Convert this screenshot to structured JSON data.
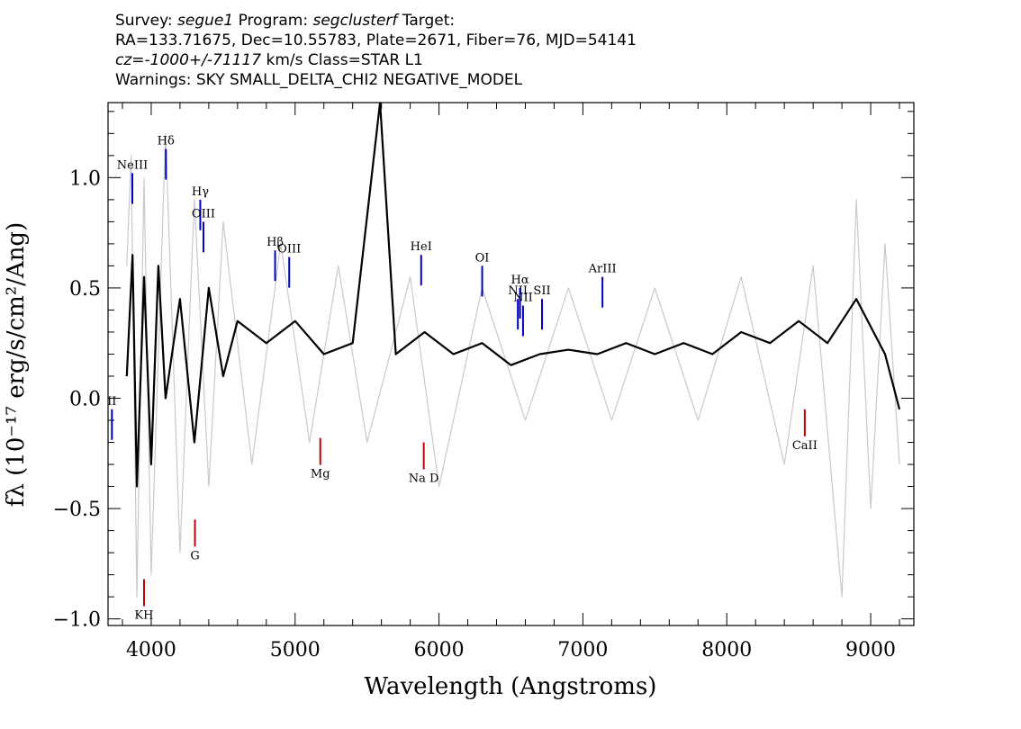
{
  "header": {
    "line1_survey_label": "Survey:",
    "survey": "segue1",
    "program_label": "Program:",
    "program": "segclusterf",
    "target_label": "Target:",
    "line2": "RA=133.71675, Dec=10.55783, Plate=2671, Fiber=76, MJD=54141",
    "cz_label": "cz=",
    "cz_value": "-1000+/-71117",
    "cz_unit_class": "km/s Class=STAR L1",
    "line4": "Warnings: SKY SMALL_DELTA_CHI2 NEGATIVE_MODEL"
  },
  "chart_data": {
    "type": "line",
    "xlabel": "Wavelength (Angstroms)",
    "ylabel": "fλ (10⁻¹⁷ erg/s/cm²/Ang)",
    "xlim": [
      3700,
      9300
    ],
    "ylim": [
      -1.03,
      1.34
    ],
    "x_ticks": [
      4000,
      5000,
      6000,
      7000,
      8000,
      9000
    ],
    "x_tick_labels": [
      "4000",
      "5000",
      "6000",
      "7000",
      "8000",
      "9000"
    ],
    "y_ticks": [
      -1.0,
      -0.5,
      0.0,
      0.5,
      1.0
    ],
    "y_tick_labels": [
      "−1.0",
      "−0.5",
      "0.0",
      "0.5",
      "1.0"
    ],
    "grid": false,
    "series": [
      {
        "color": "#c8c8c8",
        "x": [
          3830,
          3860,
          3900,
          3950,
          4000,
          4100,
          4200,
          4300,
          4400,
          4500,
          4700,
          4900,
          5100,
          5300,
          5500,
          5800,
          6000,
          6300,
          6600,
          6900,
          7200,
          7500,
          7800,
          8100,
          8400,
          8600,
          8800,
          8900,
          9000,
          9100,
          9200
        ],
        "values": [
          0.6,
          1.1,
          -0.9,
          1.0,
          -0.8,
          1.2,
          -0.7,
          0.9,
          -0.4,
          0.8,
          -0.3,
          0.7,
          -0.2,
          0.6,
          -0.2,
          0.55,
          -0.4,
          0.5,
          -0.1,
          0.5,
          -0.1,
          0.5,
          -0.1,
          0.55,
          -0.3,
          0.6,
          -0.9,
          0.9,
          -0.5,
          0.7,
          -0.3
        ]
      },
      {
        "color": "#000000",
        "x": [
          3830,
          3870,
          3900,
          3950,
          4000,
          4050,
          4100,
          4200,
          4300,
          4400,
          4500,
          4600,
          4800,
          5000,
          5200,
          5400,
          5590,
          5700,
          5900,
          6100,
          6300,
          6500,
          6700,
          6900,
          7100,
          7300,
          7500,
          7700,
          7900,
          8100,
          8300,
          8500,
          8700,
          8900,
          9100,
          9200
        ],
        "values": [
          0.1,
          0.65,
          -0.4,
          0.55,
          -0.3,
          0.6,
          0.0,
          0.45,
          -0.2,
          0.5,
          0.1,
          0.35,
          0.25,
          0.35,
          0.2,
          0.25,
          1.34,
          0.2,
          0.3,
          0.2,
          0.25,
          0.15,
          0.2,
          0.22,
          0.2,
          0.25,
          0.2,
          0.25,
          0.2,
          0.3,
          0.25,
          0.35,
          0.25,
          0.45,
          0.2,
          -0.05
        ]
      }
    ],
    "annotations": [
      {
        "label": "NeIII",
        "x": 3869,
        "y": 1.02,
        "color": "#0000c0"
      },
      {
        "label": "Hδ",
        "x": 4102,
        "y": 1.13,
        "color": "#0000c0"
      },
      {
        "label": "Hγ",
        "x": 4341,
        "y": 0.9,
        "color": "#0000c0"
      },
      {
        "label": "OIII",
        "x": 4363,
        "y": 0.8,
        "color": "#0000c0"
      },
      {
        "label": "Hβ",
        "x": 4861,
        "y": 0.67,
        "color": "#0000c0"
      },
      {
        "label": "OIII",
        "x": 4959,
        "y": 0.64,
        "color": "#0000c0"
      },
      {
        "label": "HeI",
        "x": 5876,
        "y": 0.65,
        "color": "#0000c0"
      },
      {
        "label": "OI",
        "x": 6300,
        "y": 0.6,
        "color": "#0000c0"
      },
      {
        "label": "NII",
        "x": 6548,
        "y": 0.45,
        "color": "#0000c0"
      },
      {
        "label": "Hα",
        "x": 6563,
        "y": 0.5,
        "color": "#0000c0"
      },
      {
        "label": "SII",
        "x": 6716,
        "y": 0.45,
        "color": "#0000c0"
      },
      {
        "label": "NII",
        "x": 6584,
        "y": 0.42,
        "color": "#0000c0"
      },
      {
        "label": "ArIII",
        "x": 7136,
        "y": 0.55,
        "color": "#0000c0"
      },
      {
        "label": "II",
        "x": 3727,
        "y": -0.05,
        "color": "#0000c0"
      },
      {
        "label": "KH",
        "x": 3950,
        "y": -0.82,
        "color": "#c00000"
      },
      {
        "label": "G",
        "x": 4304,
        "y": -0.55,
        "color": "#c00000"
      },
      {
        "label": "Mg",
        "x": 5175,
        "y": -0.18,
        "color": "#c00000"
      },
      {
        "label": "Na D",
        "x": 5894,
        "y": -0.2,
        "color": "#c00000"
      },
      {
        "label": "CaII",
        "x": 8542,
        "y": -0.05,
        "color": "#c00000"
      }
    ]
  }
}
